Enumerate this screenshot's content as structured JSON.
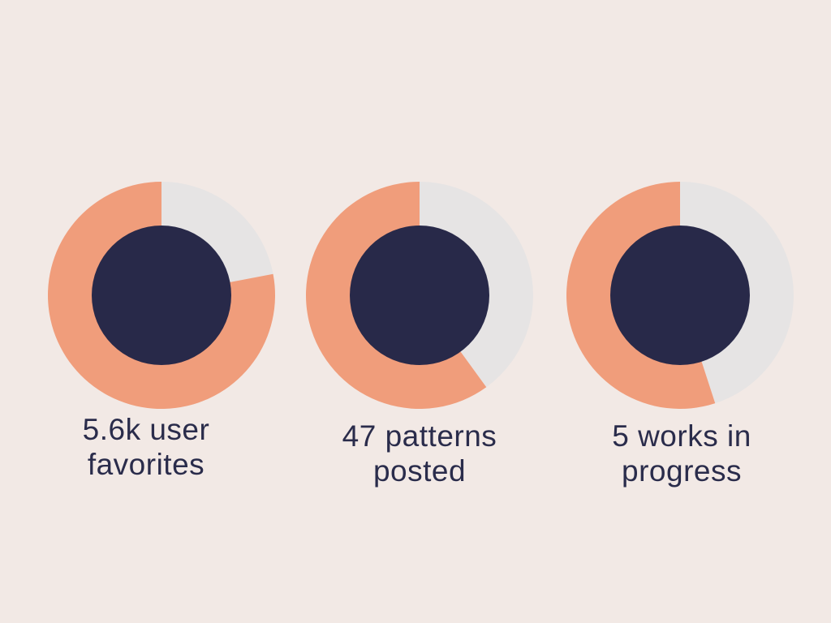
{
  "colors": {
    "background": "#f2e9e5",
    "filled": "#f09d7b",
    "remaining": "#e6e4e4",
    "center": "#282949",
    "text": "#2a2c4b"
  },
  "chart_data": [
    {
      "type": "pie",
      "style": "donut",
      "fraction": 0.78,
      "label_lines": [
        "5.6k user",
        "favorites"
      ]
    },
    {
      "type": "pie",
      "style": "donut",
      "fraction": 0.6,
      "label_lines": [
        "47 patterns",
        "posted"
      ]
    },
    {
      "type": "pie",
      "style": "donut",
      "fraction": 0.55,
      "label_lines": [
        "5 works in",
        "progress"
      ]
    }
  ]
}
